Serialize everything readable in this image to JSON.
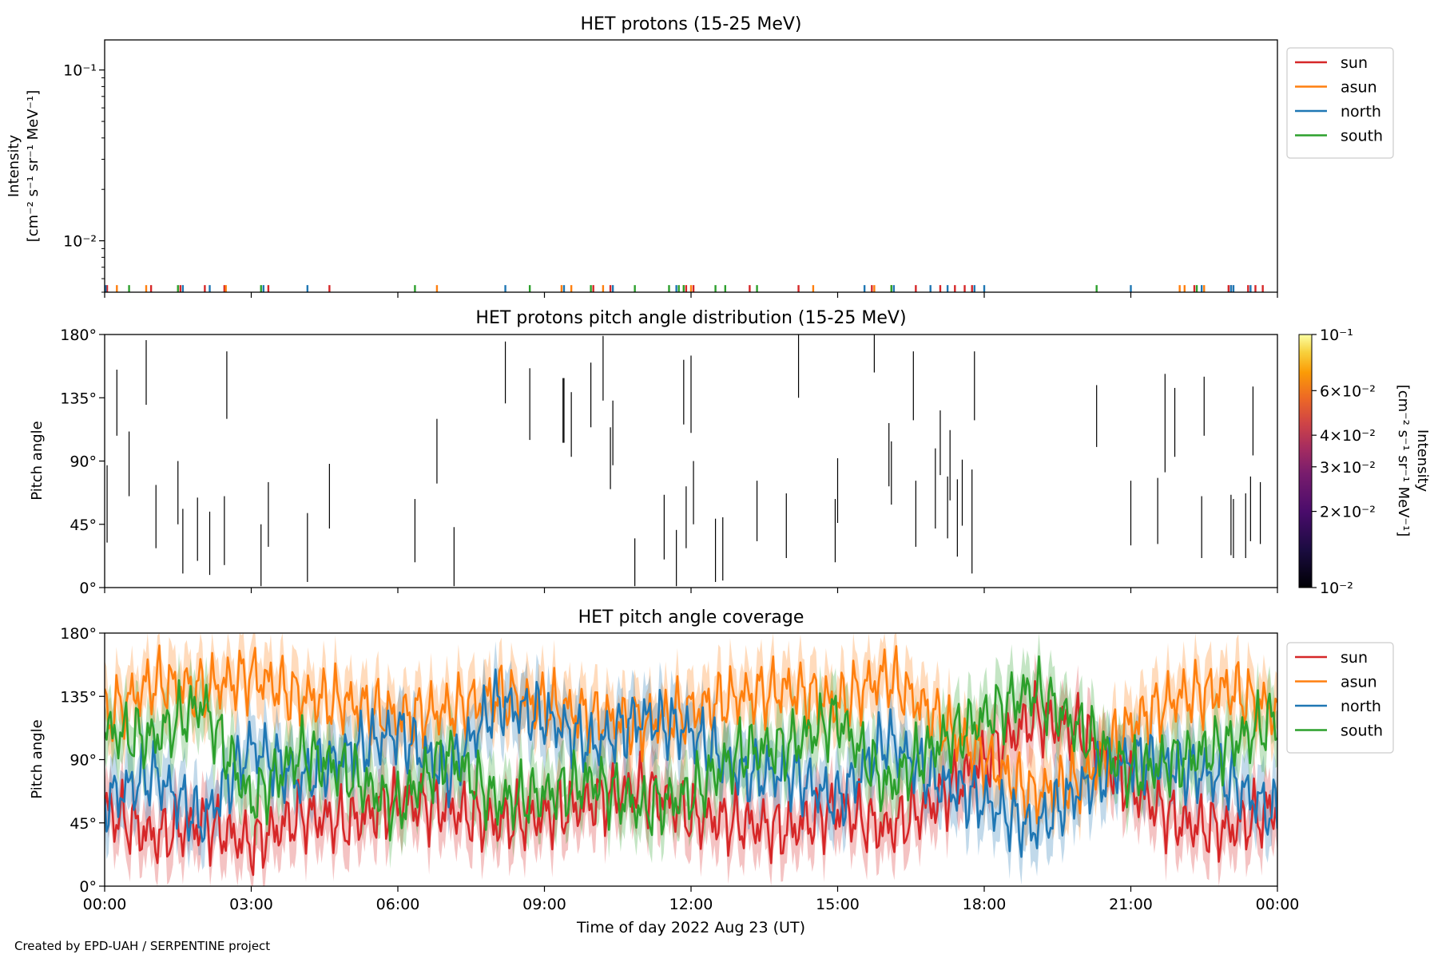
{
  "footer": "Created by EPD-UAH / SERPENTINE project",
  "colors": {
    "sun": "#d62728",
    "asun": "#ff7f0e",
    "north": "#1f77b4",
    "south": "#2ca02c",
    "pad_line": "#000000"
  },
  "chart_data": [
    {
      "panel": "intensity",
      "type": "line",
      "title": "HET protons (15-25 MeV)",
      "ylabel_lines": [
        "Intensity",
        "[cm⁻² s⁻¹ sr⁻¹ MeV⁻¹]"
      ],
      "yscale": "log",
      "ylim": [
        0.005,
        0.15
      ],
      "yticks": [
        {
          "value": 0.1,
          "label": "10⁻¹"
        },
        {
          "value": 0.01,
          "label": "10⁻²"
        }
      ],
      "legend": {
        "position": "right-top",
        "entries": [
          "sun",
          "asun",
          "north",
          "south"
        ]
      },
      "note": "sparse single-count spikes near the bottom of the axis",
      "series": [
        {
          "name": "sun",
          "color": "#d62728",
          "y": 0.0055,
          "x_hours": [
            0.05,
            0.95,
            1.55,
            2.05,
            2.45,
            3.35,
            4.6,
            10.0,
            10.35,
            11.9,
            12.05,
            13.2,
            14.2,
            15.7,
            16.6,
            17.1,
            17.4,
            17.6,
            17.75,
            22.3,
            23.0,
            23.05,
            23.4,
            23.55,
            23.7
          ]
        },
        {
          "name": "asun",
          "color": "#ff7f0e",
          "y": 0.0055,
          "x_hours": [
            0.25,
            0.85,
            2.48,
            6.8,
            9.35,
            9.55,
            10.2,
            11.85,
            12.0,
            14.5,
            15.75,
            16.1,
            22.0,
            22.1,
            22.5
          ]
        },
        {
          "name": "north",
          "color": "#1f77b4",
          "y": 0.0055,
          "x_hours": [
            0.02,
            1.6,
            2.15,
            3.25,
            4.15,
            8.2,
            9.4,
            10.4,
            11.7,
            15.55,
            16.15,
            16.9,
            17.25,
            17.8,
            18.0,
            21.0,
            22.45,
            23.05,
            23.1,
            23.45
          ]
        },
        {
          "name": "south",
          "color": "#2ca02c",
          "y": 0.0055,
          "x_hours": [
            0.5,
            1.5,
            3.2,
            6.35,
            8.7,
            9.95,
            10.85,
            11.55,
            11.75,
            11.85,
            12.5,
            12.7,
            13.35,
            16.1,
            20.3,
            22.35
          ]
        }
      ]
    },
    {
      "panel": "pad",
      "type": "heatmap",
      "title": "HET protons pitch angle distribution (15-25 MeV)",
      "ylabel": "Pitch angle",
      "ylim": [
        0,
        180
      ],
      "yticks": [
        {
          "value": 180,
          "label": "180°"
        },
        {
          "value": 135,
          "label": "135°"
        },
        {
          "value": 90,
          "label": "90°"
        },
        {
          "value": 45,
          "label": "45°"
        },
        {
          "value": 0,
          "label": "0°"
        }
      ],
      "colorbar": {
        "label_lines": [
          "Intensity",
          "[cm⁻² s⁻¹ sr⁻¹ MeV⁻¹]"
        ],
        "scale": "log",
        "range": [
          0.01,
          0.1
        ],
        "colormap": "inferno",
        "ticks": [
          {
            "value": 0.1,
            "label": "10⁻¹"
          },
          {
            "value": 0.06,
            "label": "6×10⁻²"
          },
          {
            "value": 0.04,
            "label": "4×10⁻²"
          },
          {
            "value": 0.03,
            "label": "3×10⁻²"
          },
          {
            "value": 0.02,
            "label": "2×10⁻²"
          },
          {
            "value": 0.01,
            "label": "10⁻²"
          }
        ]
      },
      "segments": [
        [
          0.05,
          32,
          87
        ],
        [
          0.25,
          108,
          155
        ],
        [
          0.5,
          65,
          111
        ],
        [
          0.85,
          130,
          176
        ],
        [
          1.05,
          28,
          73
        ],
        [
          1.5,
          45,
          90
        ],
        [
          1.6,
          10,
          56
        ],
        [
          1.9,
          19,
          64
        ],
        [
          2.15,
          9,
          54
        ],
        [
          2.45,
          16,
          65
        ],
        [
          2.5,
          120,
          168
        ],
        [
          3.2,
          1,
          45
        ],
        [
          3.35,
          29,
          75
        ],
        [
          4.15,
          4,
          53
        ],
        [
          4.6,
          42,
          88
        ],
        [
          6.35,
          18,
          63
        ],
        [
          6.8,
          74,
          120
        ],
        [
          7.15,
          1,
          43
        ],
        [
          8.2,
          131,
          175
        ],
        [
          8.7,
          105,
          156
        ],
        [
          9.38,
          103,
          149
        ],
        [
          9.4,
          103,
          149
        ],
        [
          9.55,
          93,
          139
        ],
        [
          9.95,
          114,
          160
        ],
        [
          10.35,
          70,
          114
        ],
        [
          10.2,
          133,
          179
        ],
        [
          10.4,
          87,
          133
        ],
        [
          10.85,
          1,
          35
        ],
        [
          11.45,
          20,
          66
        ],
        [
          11.7,
          1,
          41
        ],
        [
          11.85,
          116,
          162
        ],
        [
          11.9,
          28,
          72
        ],
        [
          12.0,
          110,
          165
        ],
        [
          12.05,
          45,
          90
        ],
        [
          12.5,
          4,
          49
        ],
        [
          12.65,
          5,
          50
        ],
        [
          13.35,
          33,
          76
        ],
        [
          13.95,
          21,
          67
        ],
        [
          14.2,
          135,
          180
        ],
        [
          14.95,
          18,
          63
        ],
        [
          15.0,
          46,
          92
        ],
        [
          15.75,
          153,
          180
        ],
        [
          16.05,
          72,
          117
        ],
        [
          16.1,
          59,
          104
        ],
        [
          16.55,
          119,
          168
        ],
        [
          16.6,
          29,
          76
        ],
        [
          17.0,
          42,
          99
        ],
        [
          17.1,
          80,
          126
        ],
        [
          17.25,
          35,
          79
        ],
        [
          17.3,
          62,
          112
        ],
        [
          17.45,
          22,
          77
        ],
        [
          17.55,
          44,
          91
        ],
        [
          17.75,
          10,
          84
        ],
        [
          17.8,
          119,
          168
        ],
        [
          20.3,
          100,
          144
        ],
        [
          21.0,
          30,
          76
        ],
        [
          21.55,
          31,
          78
        ],
        [
          21.7,
          82,
          152
        ],
        [
          21.9,
          93,
          142
        ],
        [
          22.45,
          21,
          65
        ],
        [
          22.5,
          108,
          150
        ],
        [
          23.05,
          23,
          66
        ],
        [
          23.1,
          21,
          63
        ],
        [
          23.35,
          21,
          67
        ],
        [
          23.45,
          33,
          79
        ],
        [
          23.5,
          94,
          143
        ],
        [
          23.65,
          31,
          75
        ]
      ]
    },
    {
      "panel": "coverage",
      "type": "line",
      "title": "HET pitch angle coverage",
      "ylabel": "Pitch angle",
      "ylim": [
        0,
        180
      ],
      "yticks": [
        {
          "value": 180,
          "label": "180°"
        },
        {
          "value": 135,
          "label": "135°"
        },
        {
          "value": 90,
          "label": "90°"
        },
        {
          "value": 45,
          "label": "45°"
        },
        {
          "value": 0,
          "label": "0°"
        }
      ],
      "xlabel": "Time of day 2022 Aug 23 (UT)",
      "xlim_hours": [
        0,
        24
      ],
      "xticks": [
        {
          "value": 0,
          "label": "00:00"
        },
        {
          "value": 3,
          "label": "03:00"
        },
        {
          "value": 6,
          "label": "06:00"
        },
        {
          "value": 9,
          "label": "09:00"
        },
        {
          "value": 12,
          "label": "12:00"
        },
        {
          "value": 15,
          "label": "15:00"
        },
        {
          "value": 18,
          "label": "18:00"
        },
        {
          "value": 21,
          "label": "21:00"
        },
        {
          "value": 24,
          "label": "00:00"
        }
      ],
      "legend": {
        "position": "right-top",
        "entries": [
          "sun",
          "asun",
          "north",
          "south"
        ]
      },
      "band_halfwidth_deg": 20,
      "x_hours": [
        0,
        1,
        2,
        3,
        4,
        5,
        6,
        7,
        8,
        9,
        10,
        11,
        12,
        13,
        14,
        15,
        16,
        17,
        18,
        19,
        20,
        21,
        22,
        23,
        24
      ],
      "series": [
        {
          "name": "sun",
          "color": "#d62728",
          "y": [
            55,
            35,
            45,
            30,
            50,
            45,
            60,
            55,
            45,
            50,
            60,
            70,
            50,
            45,
            40,
            55,
            40,
            60,
            90,
            120,
            110,
            70,
            45,
            40,
            55
          ]
        },
        {
          "name": "asun",
          "color": "#ff7f0e",
          "y": [
            120,
            145,
            140,
            150,
            135,
            130,
            120,
            125,
            135,
            130,
            120,
            115,
            125,
            135,
            140,
            130,
            150,
            120,
            90,
            65,
            75,
            115,
            135,
            140,
            125
          ]
        },
        {
          "name": "north",
          "color": "#1f77b4",
          "y": [
            60,
            80,
            45,
            100,
            75,
            95,
            110,
            80,
            130,
            120,
            100,
            120,
            110,
            80,
            80,
            60,
            105,
            75,
            60,
            40,
            70,
            90,
            85,
            75,
            50
          ]
        },
        {
          "name": "south",
          "color": "#2ca02c",
          "y": [
            110,
            105,
            130,
            60,
            95,
            80,
            55,
            95,
            60,
            65,
            75,
            55,
            65,
            95,
            100,
            120,
            70,
            100,
            120,
            140,
            110,
            80,
            90,
            100,
            120
          ]
        }
      ]
    }
  ]
}
